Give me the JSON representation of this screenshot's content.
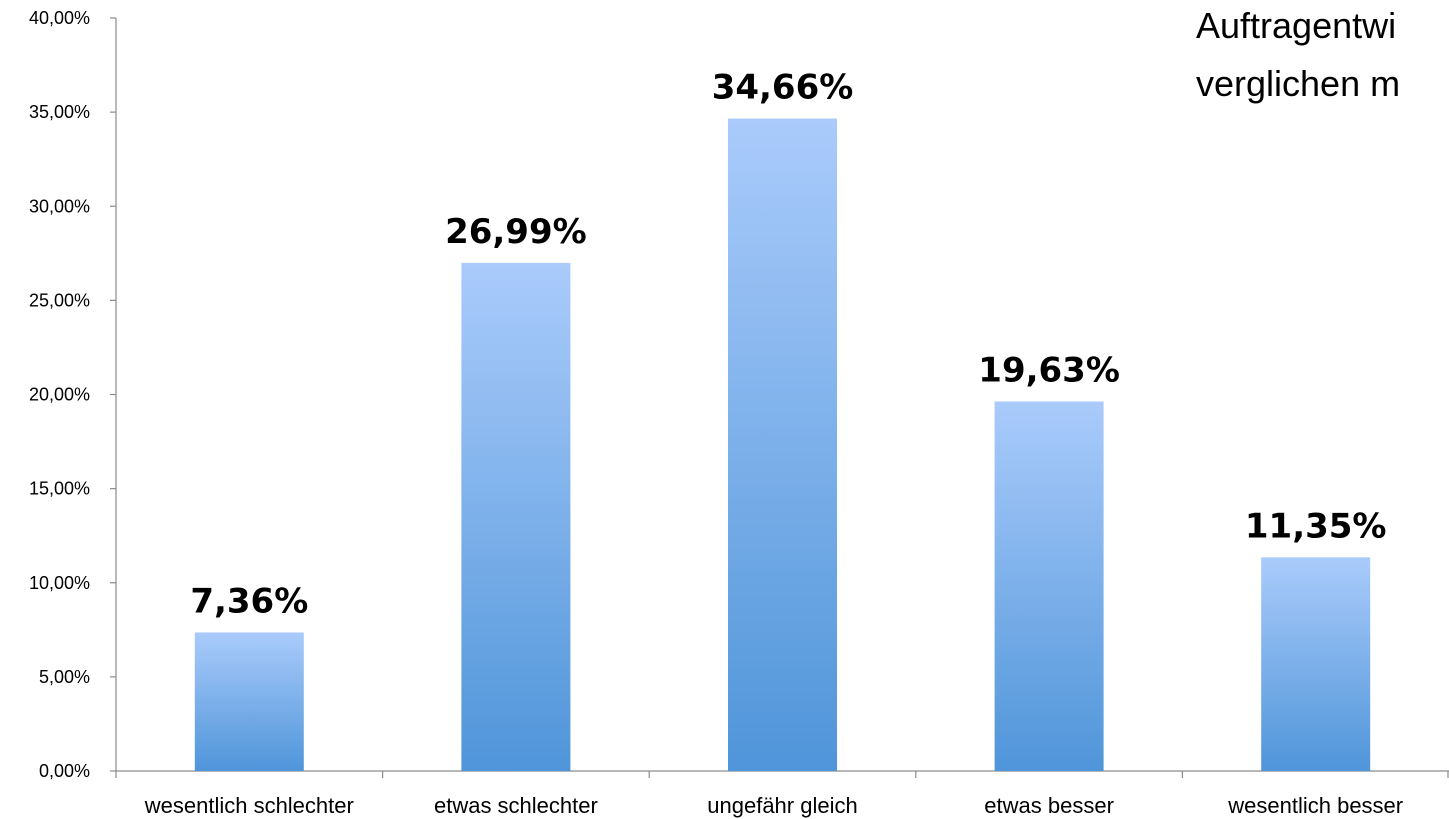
{
  "chart_data": {
    "type": "bar",
    "title_lines": [
      "Auftragentwi",
      "verglichen m"
    ],
    "categories": [
      "wesentlich schlechter",
      "etwas schlechter",
      "ungefähr gleich",
      "etwas besser",
      "wesentlich besser"
    ],
    "values": [
      7.36,
      26.99,
      34.66,
      19.63,
      11.35
    ],
    "data_labels": [
      "7,36%",
      "26,99%",
      "34,66%",
      "19,63%",
      "11,35%"
    ],
    "ylim": [
      0,
      40
    ],
    "y_ticks": [
      0,
      5,
      10,
      15,
      20,
      25,
      30,
      35,
      40
    ],
    "y_tick_labels": [
      "0,00%",
      "5,00%",
      "10,00%",
      "15,00%",
      "20,00%",
      "25,00%",
      "30,00%",
      "35,00%",
      "40,00%"
    ],
    "grid": false,
    "colors": {
      "bar_top": "#aacbfb",
      "bar_bottom": "#4f95d9",
      "axis": "#8c8c8c"
    }
  }
}
